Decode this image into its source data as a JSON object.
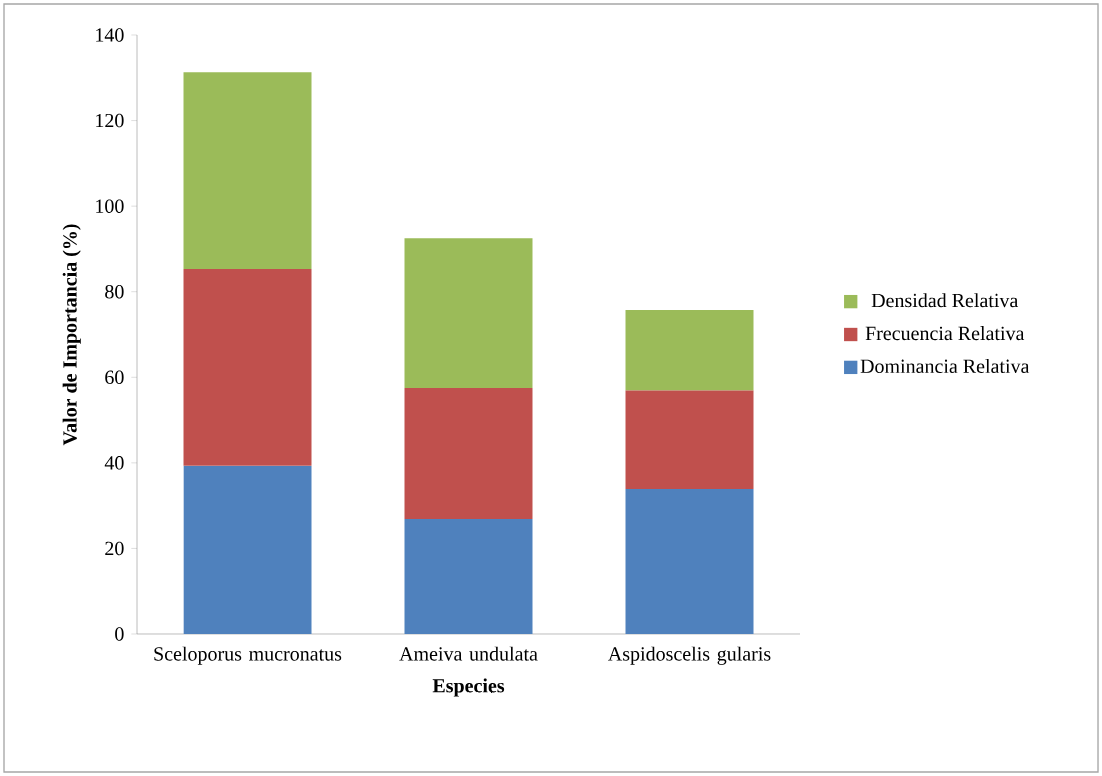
{
  "chart_data": {
    "type": "bar",
    "stacked": true,
    "xlabel": "Especies",
    "ylabel": "Valor de Importancia (%)",
    "categories": [
      "Sceloporus mucronatus",
      "Ameiva undulata",
      "Aspidoscelis gularis"
    ],
    "series": [
      {
        "name": "Dominancia Relativa",
        "color": "#4f81bd",
        "values": [
          39.3,
          26.9,
          33.9
        ]
      },
      {
        "name": "Frecuencia Relativa",
        "color": "#c0504d",
        "values": [
          46.0,
          30.6,
          23.0
        ]
      },
      {
        "name": "Densidad Relativa",
        "color": "#9bbb59",
        "values": [
          46.0,
          35.0,
          18.8
        ]
      }
    ],
    "ylim": [
      0,
      140
    ],
    "yticks": [
      0,
      20,
      40,
      60,
      80,
      100,
      120,
      140
    ],
    "grid": false,
    "legend": "right"
  }
}
